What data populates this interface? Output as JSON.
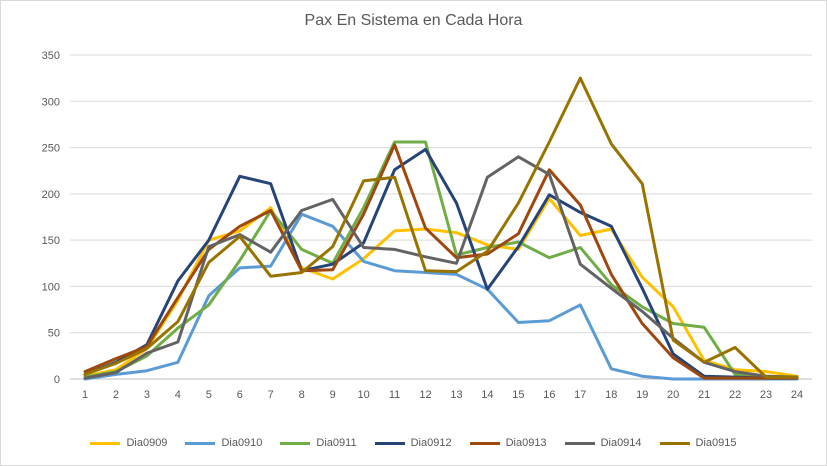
{
  "chart_data": {
    "type": "line",
    "title": "Pax En Sistema en Cada Hora",
    "xlabel": "",
    "ylabel": "",
    "x": [
      1,
      2,
      3,
      4,
      5,
      6,
      7,
      8,
      9,
      10,
      11,
      12,
      13,
      14,
      15,
      16,
      17,
      18,
      19,
      20,
      21,
      22,
      23,
      24
    ],
    "ylim": [
      0,
      350
    ],
    "yticks": [
      0,
      50,
      100,
      150,
      200,
      250,
      300,
      350
    ],
    "grid": true,
    "legend": "bottom",
    "series": [
      {
        "name": "Dia0909",
        "color": "#FFC000",
        "values": [
          3,
          10,
          33,
          85,
          150,
          160,
          185,
          120,
          108,
          130,
          160,
          162,
          158,
          145,
          140,
          195,
          155,
          162,
          110,
          78,
          20,
          10,
          8,
          3
        ]
      },
      {
        "name": "Dia0910",
        "color": "#5B9BD5",
        "values": [
          0,
          5,
          9,
          18,
          90,
          120,
          122,
          178,
          165,
          127,
          117,
          115,
          113,
          97,
          61,
          63,
          80,
          11,
          3,
          0,
          0,
          0,
          0,
          0
        ]
      },
      {
        "name": "Dia0911",
        "color": "#70AD47",
        "values": [
          2,
          8,
          25,
          55,
          80,
          128,
          182,
          140,
          125,
          185,
          256,
          256,
          134,
          142,
          148,
          131,
          142,
          102,
          78,
          60,
          56,
          5,
          3,
          2
        ]
      },
      {
        "name": "Dia0912",
        "color": "#264478",
        "values": [
          5,
          18,
          37,
          106,
          150,
          219,
          211,
          117,
          124,
          147,
          226,
          248,
          190,
          97,
          143,
          199,
          180,
          165,
          98,
          27,
          3,
          2,
          1,
          1
        ]
      },
      {
        "name": "Dia0913",
        "color": "#9E480E",
        "values": [
          8,
          22,
          35,
          88,
          140,
          165,
          182,
          117,
          118,
          178,
          253,
          163,
          131,
          135,
          157,
          226,
          188,
          113,
          60,
          23,
          1,
          1,
          1,
          1
        ]
      },
      {
        "name": "Dia0914",
        "color": "#636363",
        "values": [
          1,
          7,
          28,
          40,
          143,
          156,
          137,
          182,
          194,
          142,
          140,
          132,
          125,
          218,
          240,
          221,
          124,
          98,
          73,
          44,
          18,
          8,
          3,
          2
        ]
      },
      {
        "name": "Dia0915",
        "color": "#997300",
        "values": [
          5,
          17,
          33,
          62,
          126,
          154,
          111,
          115,
          143,
          214,
          218,
          117,
          116,
          138,
          190,
          256,
          325,
          254,
          211,
          42,
          18,
          34,
          2,
          2
        ]
      }
    ]
  }
}
